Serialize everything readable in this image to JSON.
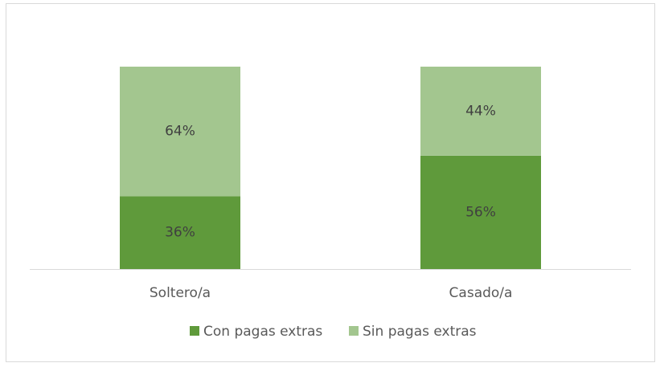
{
  "chart_data": {
    "type": "stacked_bar",
    "categories": [
      "Soltero/a",
      "Casado/a"
    ],
    "series": [
      {
        "name": "Con pagas extras",
        "color": "#5f9a3b",
        "values": [
          36,
          56
        ],
        "value_labels": [
          "36%",
          "56%"
        ]
      },
      {
        "name": "Sin pagas extras",
        "color": "#a3c68f",
        "values": [
          64,
          44
        ],
        "value_labels": [
          "64%",
          "44%"
        ]
      }
    ],
    "legend": "bottom"
  }
}
